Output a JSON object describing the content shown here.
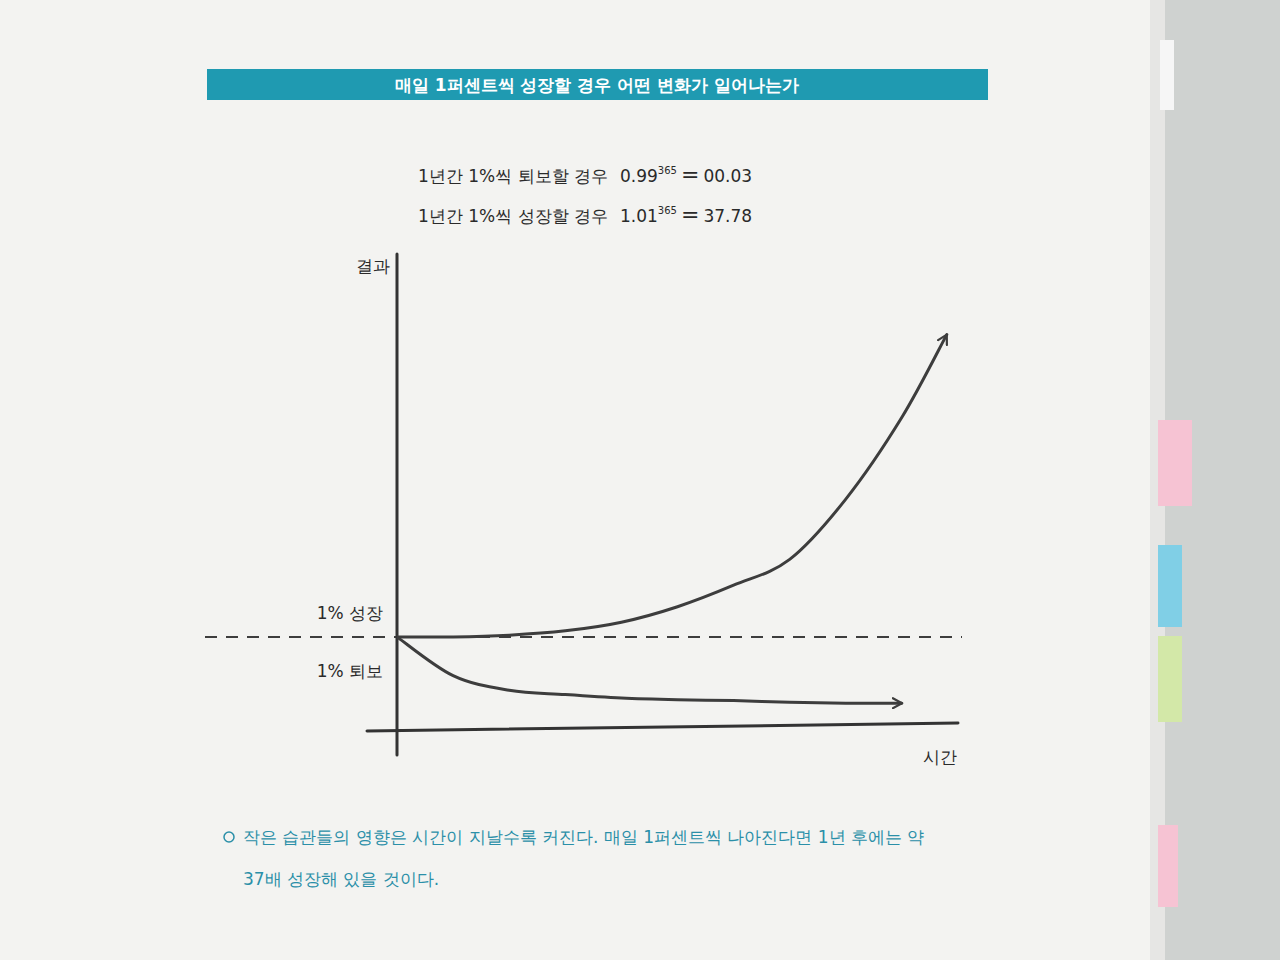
{
  "chart_data": {
    "type": "line",
    "title": "매일 1퍼센트씩 성장할 경우 어떤 변화가 일어나는가",
    "annotations": [
      {
        "text": "1년간 1%씩 퇴보할 경우",
        "base": "0.99",
        "exponent": "365",
        "operator": "=",
        "result": "00.03"
      },
      {
        "text": "1년간 1%씩 성장할 경우",
        "base": "1.01",
        "exponent": "365",
        "operator": "=",
        "result": "37.78"
      }
    ],
    "x_label": "시간",
    "y_label": "결과",
    "x": [
      0,
      1,
      2,
      3,
      4,
      5,
      6,
      7,
      8,
      9,
      9.8
    ],
    "series": [
      {
        "name": "1% 성장",
        "color": "#3d3d3d",
        "values": [
          1.0,
          1.0,
          1.02,
          1.07,
          1.17,
          1.35,
          1.6,
          1.9,
          2.6,
          3.55,
          4.51
        ]
      },
      {
        "name": "1% 퇴보",
        "color": "#3d3d3d",
        "values": [
          1.0,
          0.55,
          0.38,
          0.33,
          0.29,
          0.27,
          0.26,
          0.24,
          0.23,
          0.23,
          null
        ]
      }
    ],
    "baseline": 1,
    "xlim": [
      0,
      10
    ],
    "ylim": [
      0,
      5.4
    ],
    "xticks": [],
    "yticks": [],
    "tick_labels": false,
    "grid": false,
    "line_style": "solid",
    "caption": "작은 습관들의 영향은 시간이 지날수록 커진다. 매일 1퍼센트씩 나아진다면 1년 후에는 약 37배 성장해 있을 것이다."
  }
}
